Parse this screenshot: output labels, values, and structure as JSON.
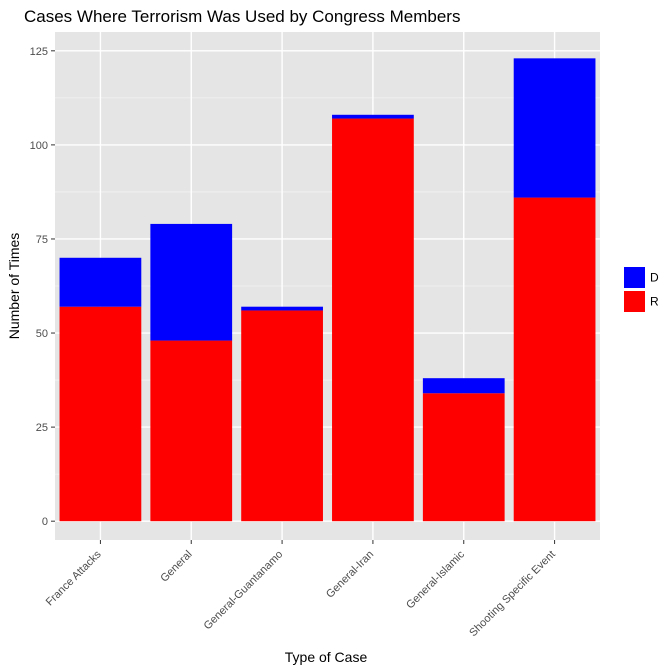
{
  "chart_data": {
    "type": "bar",
    "stacked": true,
    "title": "Cases Where Terrorism Was Used by Congress Members",
    "xlabel": "Type of Case",
    "ylabel": "Number of Times",
    "categories": [
      "France Attacks",
      "General",
      "General-Guantanamo",
      "General-Iran",
      "General-Islamic",
      "Shooting Specific Event"
    ],
    "series": [
      {
        "name": "R",
        "color": "#ff0000",
        "values": [
          57,
          48,
          56,
          107,
          34,
          86
        ]
      },
      {
        "name": "D",
        "color": "#0000ff",
        "values": [
          13,
          31,
          1,
          1,
          4,
          37
        ]
      }
    ],
    "ylim": [
      -5,
      130
    ],
    "yticks": [
      0,
      25,
      50,
      75,
      100,
      125
    ],
    "grid": true,
    "legend_position": "right",
    "legend_order": [
      "D",
      "R"
    ],
    "panel_background": "#e5e5e5"
  }
}
